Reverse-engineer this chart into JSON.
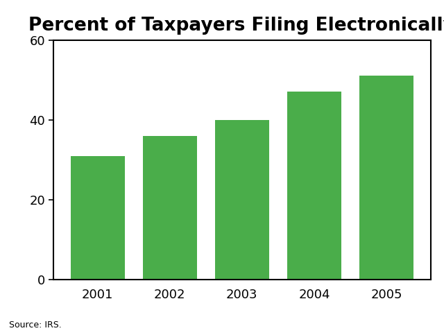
{
  "title": "Percent of Taxpayers Filing Electronically",
  "categories": [
    "2001",
    "2002",
    "2003",
    "2004",
    "2005"
  ],
  "values": [
    31,
    36,
    40,
    47,
    51
  ],
  "bar_color": "#4aad4a",
  "ylim": [
    0,
    60
  ],
  "yticks": [
    0,
    20,
    40,
    60
  ],
  "title_fontsize": 19,
  "tick_fontsize": 13,
  "source_text": "Source: IRS.",
  "source_fontsize": 9,
  "background_color": "#ffffff",
  "bar_width": 0.75
}
